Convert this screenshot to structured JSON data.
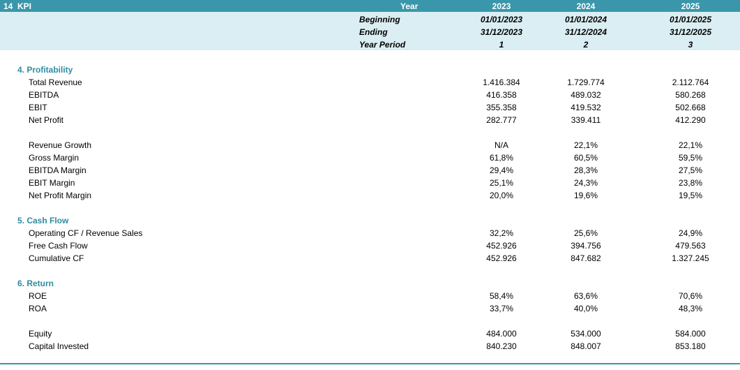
{
  "sheet": {
    "number": "14",
    "name": "KPI",
    "year_label": "Year",
    "years": [
      "2023",
      "2024",
      "2025"
    ],
    "beginning_label": "Beginning",
    "beginning": [
      "01/01/2023",
      "01/01/2024",
      "01/01/2025"
    ],
    "ending_label": "Ending",
    "ending": [
      "31/12/2023",
      "31/12/2024",
      "31/12/2025"
    ],
    "period_label": "Year Period",
    "period": [
      "1",
      "2",
      "3"
    ]
  },
  "sections": {
    "profitability": {
      "title": "4. Profitability",
      "rows": [
        {
          "label": "Total Revenue",
          "values": [
            "1.416.384",
            "1.729.774",
            "2.112.764"
          ]
        },
        {
          "label": "EBITDA",
          "values": [
            "416.358",
            "489.032",
            "580.268"
          ]
        },
        {
          "label": "EBIT",
          "values": [
            "355.358",
            "419.532",
            "502.668"
          ]
        },
        {
          "label": "Net Profit",
          "values": [
            "282.777",
            "339.411",
            "412.290"
          ]
        },
        {
          "label": "Revenue Growth",
          "values": [
            "N/A",
            "22,1%",
            "22,1%"
          ]
        },
        {
          "label": "Gross Margin",
          "values": [
            "61,8%",
            "60,5%",
            "59,5%"
          ]
        },
        {
          "label": "EBITDA Margin",
          "values": [
            "29,4%",
            "28,3%",
            "27,5%"
          ]
        },
        {
          "label": "EBIT Margin",
          "values": [
            "25,1%",
            "24,3%",
            "23,8%"
          ]
        },
        {
          "label": "Net Profit Margin",
          "values": [
            "20,0%",
            "19,6%",
            "19,5%"
          ]
        }
      ]
    },
    "cash_flow": {
      "title": "5. Cash Flow",
      "rows": [
        {
          "label": "Operating CF / Revenue Sales",
          "values": [
            "32,2%",
            "25,6%",
            "24,9%"
          ]
        },
        {
          "label": "Free Cash Flow",
          "values": [
            "452.926",
            "394.756",
            "479.563"
          ]
        },
        {
          "label": "Cumulative CF",
          "values": [
            "452.926",
            "847.682",
            "1.327.245"
          ]
        }
      ]
    },
    "return": {
      "title": "6. Return",
      "rows": [
        {
          "label": "ROE",
          "values": [
            "58,4%",
            "63,6%",
            "70,6%"
          ]
        },
        {
          "label": "ROA",
          "values": [
            "33,7%",
            "40,0%",
            "48,3%"
          ]
        },
        {
          "label": "Equity",
          "values": [
            "484.000",
            "534.000",
            "584.000"
          ]
        },
        {
          "label": "Capital Invested",
          "values": [
            "840.230",
            "848.007",
            "853.180"
          ]
        }
      ]
    }
  }
}
